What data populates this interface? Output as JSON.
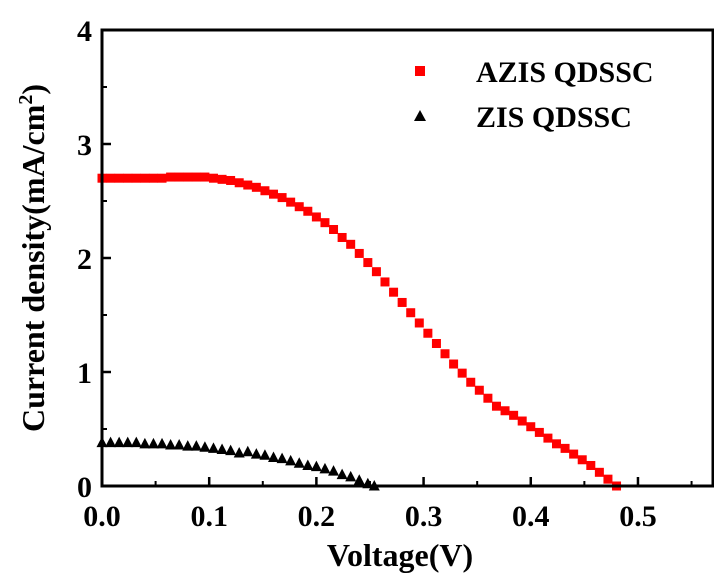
{
  "chart_data": {
    "type": "scatter",
    "xlabel": "Voltage(V)",
    "ylabel_main": "Current density(mA/cm",
    "ylabel_sup": "2",
    "ylabel_close": ")",
    "xlim": [
      0,
      0.57
    ],
    "ylim": [
      0,
      4
    ],
    "x_ticks": [
      "0.0",
      "0.1",
      "0.2",
      "0.3",
      "0.4",
      "0.5"
    ],
    "y_ticks": [
      "0",
      "1",
      "2",
      "3",
      "4"
    ],
    "grid": false,
    "legend_position": "top-right",
    "series": [
      {
        "name": "AZIS QDSSC",
        "marker": "square",
        "color": "#ff0000",
        "x": [
          0.0,
          0.008,
          0.016,
          0.024,
          0.032,
          0.04,
          0.048,
          0.056,
          0.064,
          0.072,
          0.08,
          0.088,
          0.096,
          0.104,
          0.112,
          0.12,
          0.128,
          0.136,
          0.144,
          0.152,
          0.16,
          0.168,
          0.176,
          0.184,
          0.192,
          0.2,
          0.208,
          0.216,
          0.224,
          0.232,
          0.24,
          0.248,
          0.256,
          0.264,
          0.272,
          0.28,
          0.288,
          0.296,
          0.304,
          0.312,
          0.32,
          0.328,
          0.336,
          0.344,
          0.352,
          0.36,
          0.368,
          0.376,
          0.384,
          0.392,
          0.4,
          0.408,
          0.416,
          0.424,
          0.432,
          0.44,
          0.448,
          0.456,
          0.464,
          0.472,
          0.48
        ],
        "y": [
          2.7,
          2.7,
          2.7,
          2.7,
          2.7,
          2.7,
          2.7,
          2.7,
          2.71,
          2.71,
          2.71,
          2.71,
          2.71,
          2.7,
          2.69,
          2.68,
          2.66,
          2.64,
          2.62,
          2.59,
          2.56,
          2.53,
          2.49,
          2.45,
          2.41,
          2.36,
          2.31,
          2.25,
          2.18,
          2.12,
          2.04,
          1.96,
          1.88,
          1.79,
          1.7,
          1.61,
          1.52,
          1.43,
          1.34,
          1.25,
          1.16,
          1.07,
          0.99,
          0.91,
          0.84,
          0.77,
          0.7,
          0.66,
          0.62,
          0.57,
          0.52,
          0.47,
          0.42,
          0.37,
          0.33,
          0.28,
          0.23,
          0.18,
          0.12,
          0.06,
          0.0
        ]
      },
      {
        "name": "ZIS QDSSC",
        "marker": "triangle",
        "color": "#000000",
        "x": [
          0.0,
          0.008,
          0.016,
          0.024,
          0.032,
          0.04,
          0.048,
          0.056,
          0.064,
          0.072,
          0.08,
          0.088,
          0.096,
          0.104,
          0.112,
          0.12,
          0.128,
          0.136,
          0.144,
          0.152,
          0.16,
          0.168,
          0.176,
          0.184,
          0.192,
          0.2,
          0.208,
          0.216,
          0.224,
          0.232,
          0.24,
          0.248,
          0.254
        ],
        "y": [
          0.38,
          0.38,
          0.38,
          0.38,
          0.38,
          0.37,
          0.37,
          0.37,
          0.36,
          0.36,
          0.35,
          0.35,
          0.34,
          0.33,
          0.32,
          0.31,
          0.29,
          0.3,
          0.28,
          0.27,
          0.25,
          0.24,
          0.22,
          0.2,
          0.18,
          0.17,
          0.15,
          0.13,
          0.1,
          0.08,
          0.05,
          0.02,
          0.0
        ]
      }
    ]
  }
}
